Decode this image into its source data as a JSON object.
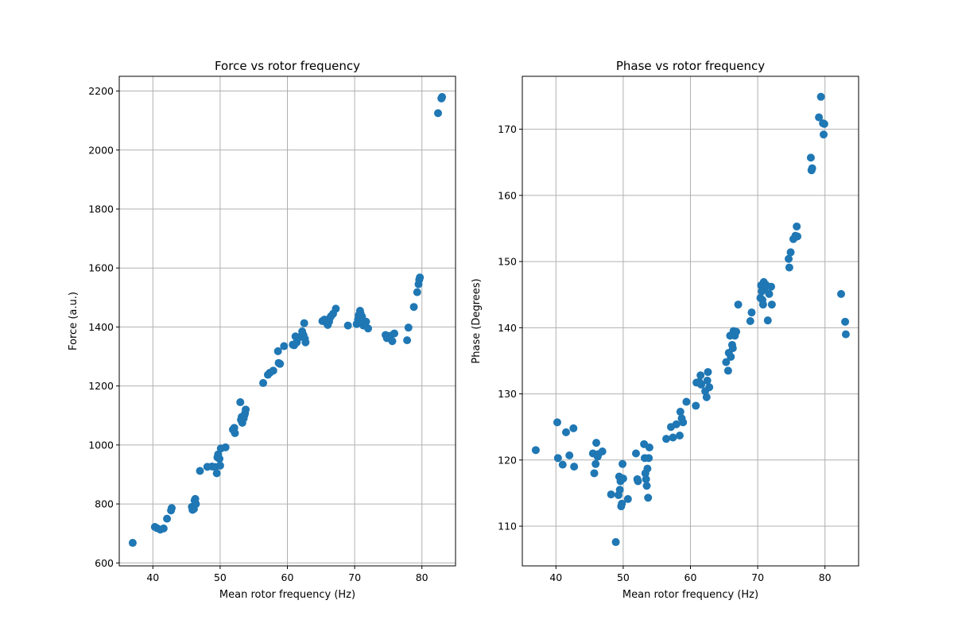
{
  "chart_data": [
    {
      "type": "scatter",
      "title": "Force vs rotor frequency",
      "xlabel": "Mean rotor frequency (Hz)",
      "ylabel": "Force (a.u.)",
      "xlim": [
        35,
        85
      ],
      "ylim": [
        590,
        2250
      ],
      "xticks": [
        40,
        50,
        60,
        70,
        80
      ],
      "yticks": [
        600,
        800,
        1000,
        1200,
        1400,
        1600,
        1800,
        2000,
        2200
      ],
      "grid": true,
      "color": "#1f77b4",
      "series": [
        {
          "points": [
            [
              37.0,
              668
            ],
            [
              40.3,
              722
            ],
            [
              40.6,
              718
            ],
            [
              41.1,
              713
            ],
            [
              41.6,
              717
            ],
            [
              42.1,
              750
            ],
            [
              42.7,
              778
            ],
            [
              42.8,
              786
            ],
            [
              45.8,
              790
            ],
            [
              45.9,
              780
            ],
            [
              46.1,
              783
            ],
            [
              46.2,
              812
            ],
            [
              46.3,
              817
            ],
            [
              46.4,
              800
            ],
            [
              47.0,
              912
            ],
            [
              48.1,
              926
            ],
            [
              48.8,
              927
            ],
            [
              49.3,
              925
            ],
            [
              49.5,
              904
            ],
            [
              49.6,
              958
            ],
            [
              49.7,
              968
            ],
            [
              49.9,
              953
            ],
            [
              50.0,
              930
            ],
            [
              50.1,
              988
            ],
            [
              50.8,
              992
            ],
            [
              51.9,
              1052
            ],
            [
              52.1,
              1058
            ],
            [
              52.2,
              1040
            ],
            [
              53.0,
              1145
            ],
            [
              53.1,
              1085
            ],
            [
              53.2,
              1095
            ],
            [
              53.3,
              1075
            ],
            [
              53.5,
              1090
            ],
            [
              53.6,
              1100
            ],
            [
              53.7,
              1107
            ],
            [
              53.8,
              1120
            ],
            [
              56.4,
              1210
            ],
            [
              57.1,
              1238
            ],
            [
              57.4,
              1245
            ],
            [
              57.9,
              1252
            ],
            [
              58.6,
              1318
            ],
            [
              58.7,
              1278
            ],
            [
              58.9,
              1275
            ],
            [
              59.5,
              1335
            ],
            [
              60.8,
              1340
            ],
            [
              61.0,
              1338
            ],
            [
              61.2,
              1368
            ],
            [
              61.4,
              1348
            ],
            [
              61.7,
              1365
            ],
            [
              62.2,
              1385
            ],
            [
              62.4,
              1372
            ],
            [
              62.6,
              1360
            ],
            [
              62.5,
              1413
            ],
            [
              62.7,
              1348
            ],
            [
              65.2,
              1420
            ],
            [
              65.5,
              1425
            ],
            [
              65.8,
              1415
            ],
            [
              66.0,
              1407
            ],
            [
              66.2,
              1418
            ],
            [
              66.3,
              1430
            ],
            [
              66.5,
              1437
            ],
            [
              66.8,
              1445
            ],
            [
              67.2,
              1462
            ],
            [
              69.0,
              1405
            ],
            [
              70.3,
              1410
            ],
            [
              70.5,
              1425
            ],
            [
              70.6,
              1440
            ],
            [
              70.8,
              1455
            ],
            [
              70.9,
              1445
            ],
            [
              71.0,
              1420
            ],
            [
              71.1,
              1435
            ],
            [
              71.3,
              1405
            ],
            [
              71.5,
              1412
            ],
            [
              71.7,
              1418
            ],
            [
              72.0,
              1395
            ],
            [
              74.6,
              1373
            ],
            [
              74.8,
              1362
            ],
            [
              75.3,
              1370
            ],
            [
              75.6,
              1352
            ],
            [
              75.9,
              1378
            ],
            [
              77.8,
              1355
            ],
            [
              78.0,
              1398
            ],
            [
              78.8,
              1468
            ],
            [
              79.3,
              1518
            ],
            [
              79.5,
              1545
            ],
            [
              79.6,
              1560
            ],
            [
              79.7,
              1568
            ],
            [
              82.4,
              2125
            ],
            [
              82.9,
              2175
            ],
            [
              83.0,
              2180
            ]
          ]
        }
      ]
    },
    {
      "type": "scatter",
      "title": "Phase vs rotor frequency",
      "xlabel": "Mean rotor frequency (Hz)",
      "ylabel": "Phase (Degrees)",
      "xlim": [
        35,
        85
      ],
      "ylim": [
        104,
        178
      ],
      "xticks": [
        40,
        50,
        60,
        70,
        80
      ],
      "yticks": [
        110,
        120,
        130,
        140,
        150,
        160,
        170
      ],
      "grid": true,
      "color": "#1f77b4",
      "series": [
        {
          "points": [
            [
              37.0,
              121.5
            ],
            [
              40.2,
              125.7
            ],
            [
              40.3,
              120.3
            ],
            [
              41.0,
              119.3
            ],
            [
              41.5,
              124.2
            ],
            [
              42.0,
              120.7
            ],
            [
              42.6,
              124.8
            ],
            [
              42.7,
              119.0
            ],
            [
              45.5,
              121.0
            ],
            [
              45.7,
              118.0
            ],
            [
              45.9,
              119.4
            ],
            [
              46.0,
              122.6
            ],
            [
              46.2,
              120.5
            ],
            [
              46.3,
              120.9
            ],
            [
              46.9,
              121.3
            ],
            [
              48.2,
              114.8
            ],
            [
              48.9,
              107.6
            ],
            [
              49.3,
              114.7
            ],
            [
              49.4,
              117.5
            ],
            [
              49.5,
              115.5
            ],
            [
              49.6,
              116.8
            ],
            [
              49.7,
              113.0
            ],
            [
              49.8,
              113.4
            ],
            [
              49.9,
              119.4
            ],
            [
              50.0,
              117.2
            ],
            [
              50.7,
              114.1
            ],
            [
              51.9,
              121.0
            ],
            [
              52.1,
              117.1
            ],
            [
              52.2,
              116.8
            ],
            [
              53.1,
              122.4
            ],
            [
              53.2,
              120.3
            ],
            [
              53.3,
              118.0
            ],
            [
              53.4,
              117.1
            ],
            [
              53.5,
              116.1
            ],
            [
              53.6,
              118.7
            ],
            [
              53.7,
              114.3
            ],
            [
              53.8,
              120.3
            ],
            [
              53.9,
              121.9
            ],
            [
              56.4,
              123.2
            ],
            [
              57.1,
              125.0
            ],
            [
              57.4,
              123.4
            ],
            [
              57.9,
              125.4
            ],
            [
              58.4,
              123.7
            ],
            [
              58.5,
              127.3
            ],
            [
              58.7,
              126.3
            ],
            [
              58.9,
              125.7
            ],
            [
              59.4,
              128.8
            ],
            [
              60.8,
              128.2
            ],
            [
              60.9,
              131.7
            ],
            [
              61.3,
              131.8
            ],
            [
              61.5,
              132.8
            ],
            [
              61.6,
              131.4
            ],
            [
              62.2,
              130.4
            ],
            [
              62.4,
              129.5
            ],
            [
              62.5,
              132.0
            ],
            [
              62.6,
              133.3
            ],
            [
              62.8,
              131.0
            ],
            [
              65.3,
              134.8
            ],
            [
              65.6,
              133.5
            ],
            [
              65.7,
              136.2
            ],
            [
              65.9,
              138.8
            ],
            [
              66.0,
              135.6
            ],
            [
              66.2,
              137.4
            ],
            [
              66.3,
              136.9
            ],
            [
              66.4,
              139.5
            ],
            [
              66.6,
              138.8
            ],
            [
              66.8,
              139.4
            ],
            [
              67.1,
              143.5
            ],
            [
              68.9,
              141.0
            ],
            [
              69.1,
              142.3
            ],
            [
              70.4,
              144.5
            ],
            [
              70.5,
              146.4
            ],
            [
              70.6,
              145.5
            ],
            [
              70.7,
              144.2
            ],
            [
              70.8,
              143.5
            ],
            [
              70.9,
              146.9
            ],
            [
              71.0,
              145.8
            ],
            [
              71.2,
              146.5
            ],
            [
              71.5,
              141.1
            ],
            [
              71.7,
              145.1
            ],
            [
              72.0,
              146.2
            ],
            [
              72.1,
              143.5
            ],
            [
              74.6,
              150.4
            ],
            [
              74.7,
              149.1
            ],
            [
              74.9,
              151.4
            ],
            [
              75.3,
              153.4
            ],
            [
              75.6,
              153.9
            ],
            [
              75.8,
              155.3
            ],
            [
              75.9,
              153.8
            ],
            [
              77.9,
              165.7
            ],
            [
              78.0,
              163.8
            ],
            [
              78.1,
              164.1
            ],
            [
              79.1,
              171.8
            ],
            [
              79.4,
              174.9
            ],
            [
              79.7,
              170.9
            ],
            [
              79.8,
              169.2
            ],
            [
              79.9,
              170.8
            ],
            [
              82.4,
              145.1
            ],
            [
              83.0,
              140.9
            ],
            [
              83.1,
              139.0
            ]
          ]
        }
      ]
    }
  ]
}
